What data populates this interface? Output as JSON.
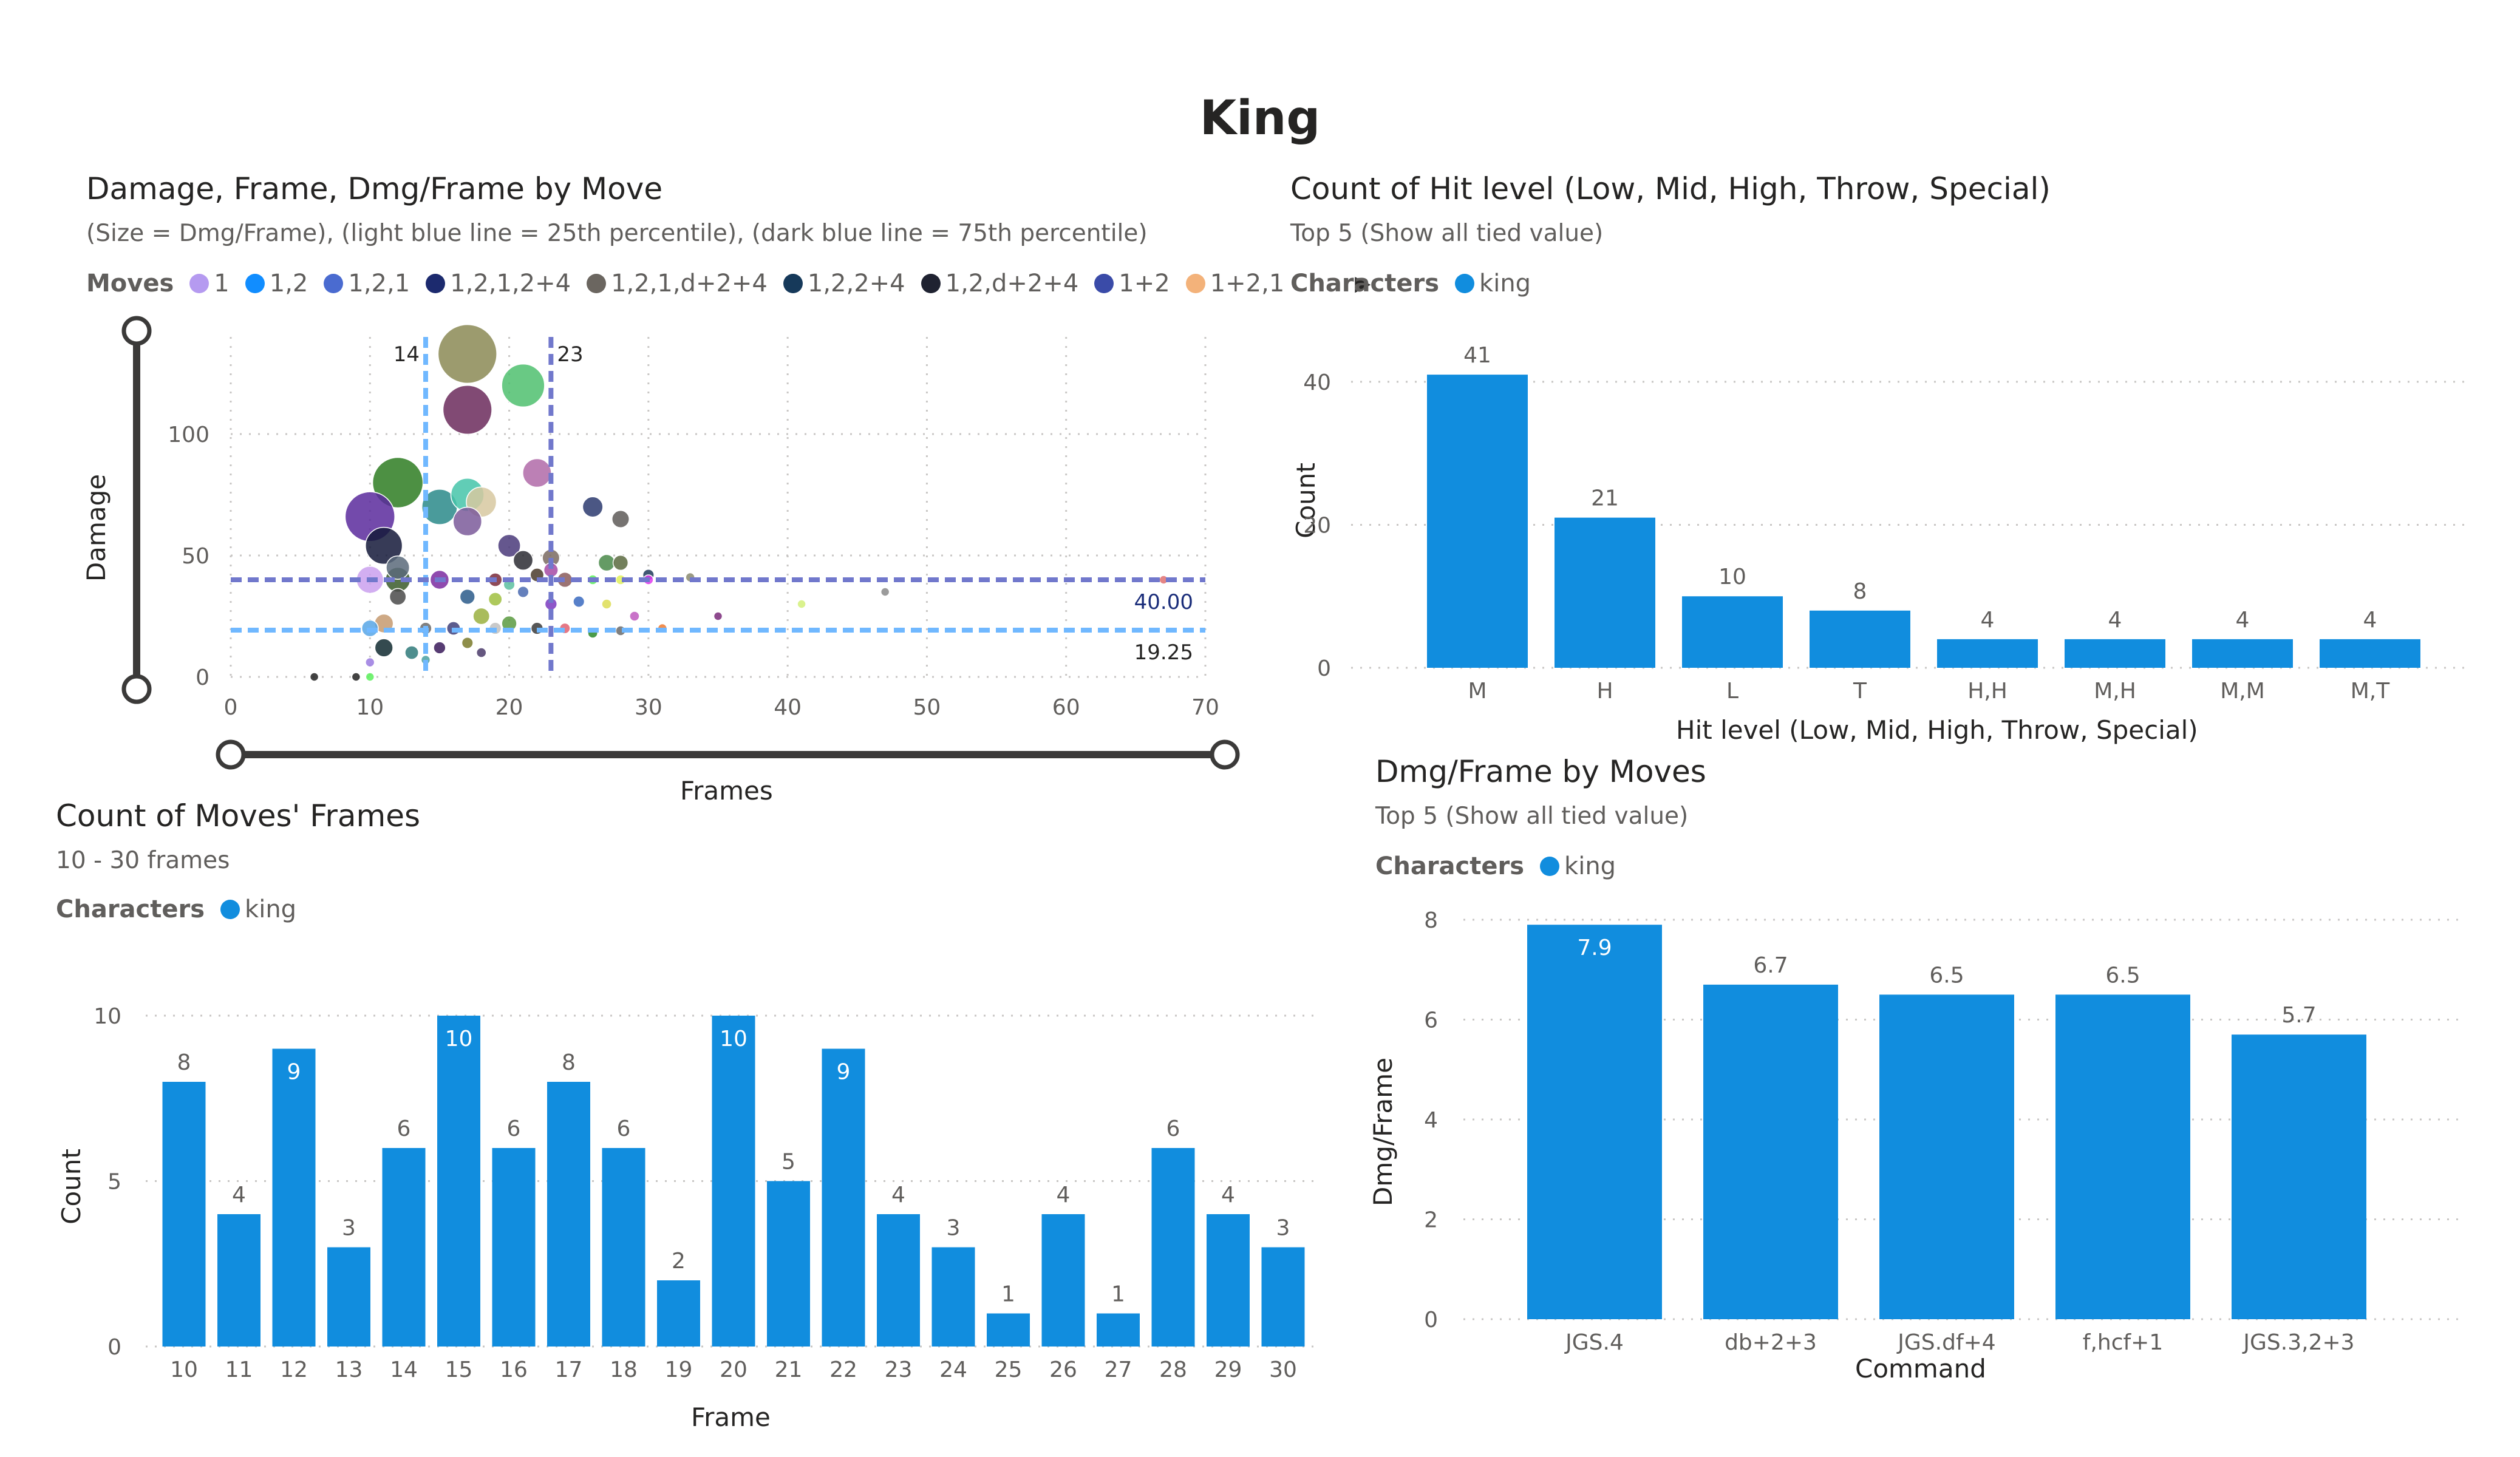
{
  "report": {
    "title": "King"
  },
  "scatter": {
    "title": "Damage, Frame, Dmg/Frame by Move",
    "subtitle": "(Size = Dmg/Frame), (light blue line = 25th percentile), (dark blue line = 75th percentile)",
    "legend_title": "Moves",
    "legend_arrow_icon": "chevron-right-icon",
    "legend": [
      {
        "name": "1",
        "color": "#b59af0"
      },
      {
        "name": "1,2",
        "color": "#118dff"
      },
      {
        "name": "1,2,1",
        "color": "#4a6bd0"
      },
      {
        "name": "1,2,1,2+4",
        "color": "#1c2a6e"
      },
      {
        "name": "1,2,1,d+2+4",
        "color": "#6b6660"
      },
      {
        "name": "1,2,2+4",
        "color": "#16395a"
      },
      {
        "name": "1,2,d+2+4",
        "color": "#1f2231"
      },
      {
        "name": "1+2",
        "color": "#3a4ba8"
      },
      {
        "name": "1+2,1",
        "color": "#f3b27a"
      }
    ],
    "x_label": "Frames",
    "y_label": "Damage"
  },
  "hit_level": {
    "title": "Count of Hit level (Low, Mid, High, Throw, Special)",
    "subtitle": "Top 5 (Show all tied value)",
    "legend_title": "Characters",
    "legend_item": "king",
    "x_label": "Hit level (Low, Mid, High, Throw, Special)",
    "y_label": "Count"
  },
  "frames_count": {
    "title": "Count of Moves' Frames",
    "subtitle": "10 - 30 frames",
    "legend_title": "Characters",
    "legend_item": "king",
    "x_label": "Frame",
    "y_label": "Count"
  },
  "dmg_frame": {
    "title": "Dmg/Frame by Moves",
    "subtitle": "Top 5 (Show all tied value)",
    "legend_title": "Characters",
    "legend_item": "king",
    "x_label": "Command",
    "y_label": "Dmg/Frame"
  },
  "colors": {
    "bar": "#118dde",
    "p25": "#70b8ff",
    "p75": "#7178cc",
    "slider": "#3b3a39",
    "grid": "#c8c6c4"
  },
  "chart_data": [
    {
      "type": "scatter",
      "title": "Damage, Frame, Dmg/Frame by Move",
      "xlabel": "Frames",
      "ylabel": "Damage",
      "xlim": [
        0,
        70
      ],
      "ylim": [
        0,
        140
      ],
      "xticks": [
        0,
        10,
        20,
        30,
        40,
        50,
        60,
        70
      ],
      "yticks": [
        0,
        50,
        100
      ],
      "size_encoding": "Dmg/Frame",
      "reference_lines": [
        {
          "axis": "x",
          "value": 14,
          "label": "14",
          "kind": "25th percentile"
        },
        {
          "axis": "x",
          "value": 23,
          "label": "23",
          "kind": "75th percentile"
        },
        {
          "axis": "y",
          "value": 40.0,
          "label": "40.00",
          "kind": "75th percentile"
        },
        {
          "axis": "y",
          "value": 19.25,
          "label": "19.25",
          "kind": "25th percentile"
        }
      ],
      "points": [
        {
          "x": 17,
          "y": 133,
          "size": 7.8,
          "color": "#8b8a55"
        },
        {
          "x": 17,
          "y": 110,
          "size": 6.5,
          "color": "#6b2a5c"
        },
        {
          "x": 21,
          "y": 120,
          "size": 5.7,
          "color": "#4fc06f"
        },
        {
          "x": 22,
          "y": 84,
          "size": 3.8,
          "color": "#b06aa8"
        },
        {
          "x": 12,
          "y": 80,
          "size": 6.7,
          "color": "#2e7d22"
        },
        {
          "x": 17,
          "y": 75,
          "size": 4.4,
          "color": "#45c4a9"
        },
        {
          "x": 18,
          "y": 72,
          "size": 4.0,
          "color": "#d7c8a0"
        },
        {
          "x": 15,
          "y": 70,
          "size": 4.7,
          "color": "#2a8a8a"
        },
        {
          "x": 10,
          "y": 66,
          "size": 6.6,
          "color": "#5b2a9c"
        },
        {
          "x": 17,
          "y": 64,
          "size": 3.8,
          "color": "#7b5a9a"
        },
        {
          "x": 26,
          "y": 70,
          "size": 2.7,
          "color": "#2b3a6e"
        },
        {
          "x": 28,
          "y": 65,
          "size": 2.3,
          "color": "#5e5a58"
        },
        {
          "x": 11,
          "y": 54,
          "size": 4.9,
          "color": "#14193a"
        },
        {
          "x": 20,
          "y": 54,
          "size": 3.0,
          "color": "#4a3a7a"
        },
        {
          "x": 21,
          "y": 48,
          "size": 2.6,
          "color": "#2b2b33"
        },
        {
          "x": 23,
          "y": 49,
          "size": 2.3,
          "color": "#7a6a60"
        },
        {
          "x": 27,
          "y": 47,
          "size": 2.2,
          "color": "#4a8a4a"
        },
        {
          "x": 28,
          "y": 47,
          "size": 2.0,
          "color": "#5a6a40"
        },
        {
          "x": 30,
          "y": 42,
          "size": 1.5,
          "color": "#1e3a5a"
        },
        {
          "x": 12,
          "y": 45,
          "size": 3.1,
          "color": "#5b6a7a"
        },
        {
          "x": 10,
          "y": 40,
          "size": 3.6,
          "color": "#caa0ee"
        },
        {
          "x": 12,
          "y": 40,
          "size": 3.3,
          "color": "#3a5a2a"
        },
        {
          "x": 15,
          "y": 40,
          "size": 2.5,
          "color": "#7b2aa0"
        },
        {
          "x": 19,
          "y": 40,
          "size": 1.8,
          "color": "#7a2a3a"
        },
        {
          "x": 22,
          "y": 42,
          "size": 1.8,
          "color": "#4a3a2a"
        },
        {
          "x": 23,
          "y": 44,
          "size": 1.9,
          "color": "#a64aa4"
        },
        {
          "x": 24,
          "y": 40,
          "size": 2.0,
          "color": "#8a5a5a"
        },
        {
          "x": 26,
          "y": 40,
          "size": 1.3,
          "color": "#5cf05c"
        },
        {
          "x": 28,
          "y": 40,
          "size": 1.3,
          "color": "#e0f05a"
        },
        {
          "x": 30,
          "y": 40,
          "size": 1.3,
          "color": "#e03af0"
        },
        {
          "x": 33,
          "y": 41,
          "size": 1.2,
          "color": "#8a8a70"
        },
        {
          "x": 20,
          "y": 38,
          "size": 1.5,
          "color": "#5cc0a0"
        },
        {
          "x": 21,
          "y": 35,
          "size": 1.5,
          "color": "#4a6ab0"
        },
        {
          "x": 12,
          "y": 33,
          "size": 2.2,
          "color": "#4a4a4a"
        },
        {
          "x": 17,
          "y": 33,
          "size": 2.0,
          "color": "#2a5a8a"
        },
        {
          "x": 19,
          "y": 32,
          "size": 1.8,
          "color": "#a0c040"
        },
        {
          "x": 23,
          "y": 30,
          "size": 1.6,
          "color": "#7a3ac0"
        },
        {
          "x": 25,
          "y": 31,
          "size": 1.5,
          "color": "#3a6ac0"
        },
        {
          "x": 27,
          "y": 30,
          "size": 1.3,
          "color": "#dddd55"
        },
        {
          "x": 29,
          "y": 25,
          "size": 1.3,
          "color": "#c05ac0"
        },
        {
          "x": 35,
          "y": 25,
          "size": 1.0,
          "color": "#7a2a7a"
        },
        {
          "x": 41,
          "y": 30,
          "size": 1.0,
          "color": "#d4f07a"
        },
        {
          "x": 47,
          "y": 35,
          "size": 1.0,
          "color": "#8a8a8a"
        },
        {
          "x": 67,
          "y": 40,
          "size": 0.8,
          "color": "#e07070"
        },
        {
          "x": 10,
          "y": 20,
          "size": 2.2,
          "color": "#57a6e6"
        },
        {
          "x": 11,
          "y": 22,
          "size": 2.5,
          "color": "#c59a70"
        },
        {
          "x": 14,
          "y": 20,
          "size": 1.6,
          "color": "#6a6a6a"
        },
        {
          "x": 16,
          "y": 20,
          "size": 1.8,
          "color": "#40407a"
        },
        {
          "x": 18,
          "y": 25,
          "size": 2.2,
          "color": "#9ab040"
        },
        {
          "x": 19,
          "y": 20,
          "size": 1.6,
          "color": "#c0c0c0"
        },
        {
          "x": 20,
          "y": 22,
          "size": 2.0,
          "color": "#5a9a40"
        },
        {
          "x": 22,
          "y": 20,
          "size": 1.6,
          "color": "#3a3a3a"
        },
        {
          "x": 24,
          "y": 20,
          "size": 1.4,
          "color": "#e06070"
        },
        {
          "x": 26,
          "y": 18,
          "size": 1.3,
          "color": "#2a8a2a"
        },
        {
          "x": 28,
          "y": 19,
          "size": 1.3,
          "color": "#6a6a6a"
        },
        {
          "x": 31,
          "y": 20,
          "size": 1.2,
          "color": "#f07a30"
        },
        {
          "x": 11,
          "y": 12,
          "size": 2.4,
          "color": "#102a30"
        },
        {
          "x": 13,
          "y": 10,
          "size": 1.8,
          "color": "#2f7a7a"
        },
        {
          "x": 15,
          "y": 12,
          "size": 1.6,
          "color": "#3a1a5a"
        },
        {
          "x": 17,
          "y": 14,
          "size": 1.5,
          "color": "#7a7a2a"
        },
        {
          "x": 18,
          "y": 10,
          "size": 1.3,
          "color": "#4a3a6a"
        },
        {
          "x": 10,
          "y": 6,
          "size": 1.2,
          "color": "#9a7ae0"
        },
        {
          "x": 14,
          "y": 7,
          "size": 1.2,
          "color": "#4aa0a0"
        },
        {
          "x": 10,
          "y": 0,
          "size": 0.5,
          "color": "#5cf05c"
        },
        {
          "x": 6,
          "y": 0,
          "size": 0.4,
          "color": "#222222"
        },
        {
          "x": 9,
          "y": 0,
          "size": 0.4,
          "color": "#222222"
        }
      ]
    },
    {
      "type": "bar",
      "title": "Count of Hit level (Low, Mid, High, Throw, Special)",
      "xlabel": "Hit level (Low, Mid, High, Throw, Special)",
      "ylabel": "Count",
      "ylim": [
        0,
        45
      ],
      "yticks": [
        0,
        20,
        40
      ],
      "categories": [
        "M",
        "H",
        "L",
        "T",
        "H,H",
        "M,H",
        "M,M",
        "M,T"
      ],
      "values": [
        41,
        21,
        10,
        8,
        4,
        4,
        4,
        4
      ],
      "data_labels": [
        "41",
        "21",
        "10",
        "8",
        "4",
        "4",
        "4",
        "4"
      ],
      "series": [
        {
          "name": "king",
          "values": [
            41,
            21,
            10,
            8,
            4,
            4,
            4,
            4
          ]
        }
      ]
    },
    {
      "type": "bar",
      "title": "Count of Moves' Frames",
      "xlabel": "Frame",
      "ylabel": "Count",
      "ylim": [
        0,
        10
      ],
      "yticks": [
        0,
        5,
        10
      ],
      "categories": [
        "10",
        "11",
        "12",
        "13",
        "14",
        "15",
        "16",
        "17",
        "18",
        "19",
        "20",
        "21",
        "22",
        "23",
        "24",
        "25",
        "26",
        "27",
        "28",
        "29",
        "30"
      ],
      "values": [
        8,
        4,
        9,
        3,
        6,
        10,
        6,
        8,
        6,
        2,
        10,
        5,
        9,
        4,
        3,
        1,
        4,
        1,
        6,
        4,
        3
      ],
      "data_labels": [
        "8",
        "4",
        "9",
        "3",
        "6",
        "10",
        "6",
        "8",
        "6",
        "2",
        "10",
        "5",
        "9",
        "4",
        "3",
        "1",
        "4",
        "1",
        "6",
        "4",
        "3"
      ],
      "series": [
        {
          "name": "king",
          "values": [
            8,
            4,
            9,
            3,
            6,
            10,
            6,
            8,
            6,
            2,
            10,
            5,
            9,
            4,
            3,
            1,
            4,
            1,
            6,
            4,
            3
          ]
        }
      ]
    },
    {
      "type": "bar",
      "title": "Dmg/Frame by Moves",
      "xlabel": "Command",
      "ylabel": "Dmg/Frame",
      "ylim": [
        0,
        8
      ],
      "yticks": [
        0,
        2,
        4,
        6,
        8
      ],
      "categories": [
        "JGS.4",
        "db+2+3",
        "JGS.df+4",
        "f,hcf+1",
        "JGS.3,2+3"
      ],
      "values": [
        7.9,
        6.7,
        6.5,
        6.5,
        5.7
      ],
      "data_labels": [
        "7.9",
        "6.7",
        "6.5",
        "6.5",
        "5.7"
      ],
      "series": [
        {
          "name": "king",
          "values": [
            7.9,
            6.7,
            6.5,
            6.5,
            5.7
          ]
        }
      ]
    }
  ]
}
